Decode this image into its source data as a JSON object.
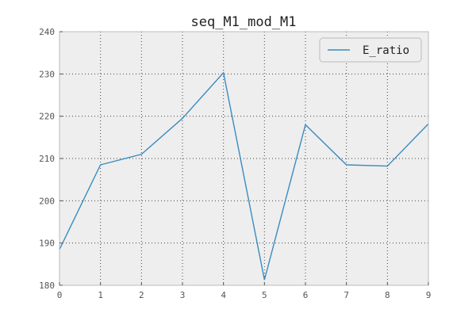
{
  "chart_data": {
    "type": "line",
    "title": "seq_M1_mod_M1",
    "xlabel": "",
    "ylabel": "",
    "x": [
      0,
      1,
      2,
      3,
      4,
      5,
      6,
      7,
      8,
      9
    ],
    "xlim": [
      0,
      9
    ],
    "ylim": [
      180,
      240
    ],
    "xticks": [
      "0",
      "1",
      "2",
      "3",
      "4",
      "5",
      "6",
      "7",
      "8",
      "9"
    ],
    "yticks": [
      "180",
      "190",
      "200",
      "210",
      "220",
      "230",
      "240"
    ],
    "grid": true,
    "legend_position": "top-right",
    "background_color": "#eeeeee",
    "series": [
      {
        "name": "E_ratio",
        "color": "#3a8cc0",
        "values": [
          188.5,
          208.5,
          211.0,
          219.5,
          230.3,
          181.3,
          218.0,
          208.5,
          208.2,
          218.2
        ]
      }
    ]
  }
}
